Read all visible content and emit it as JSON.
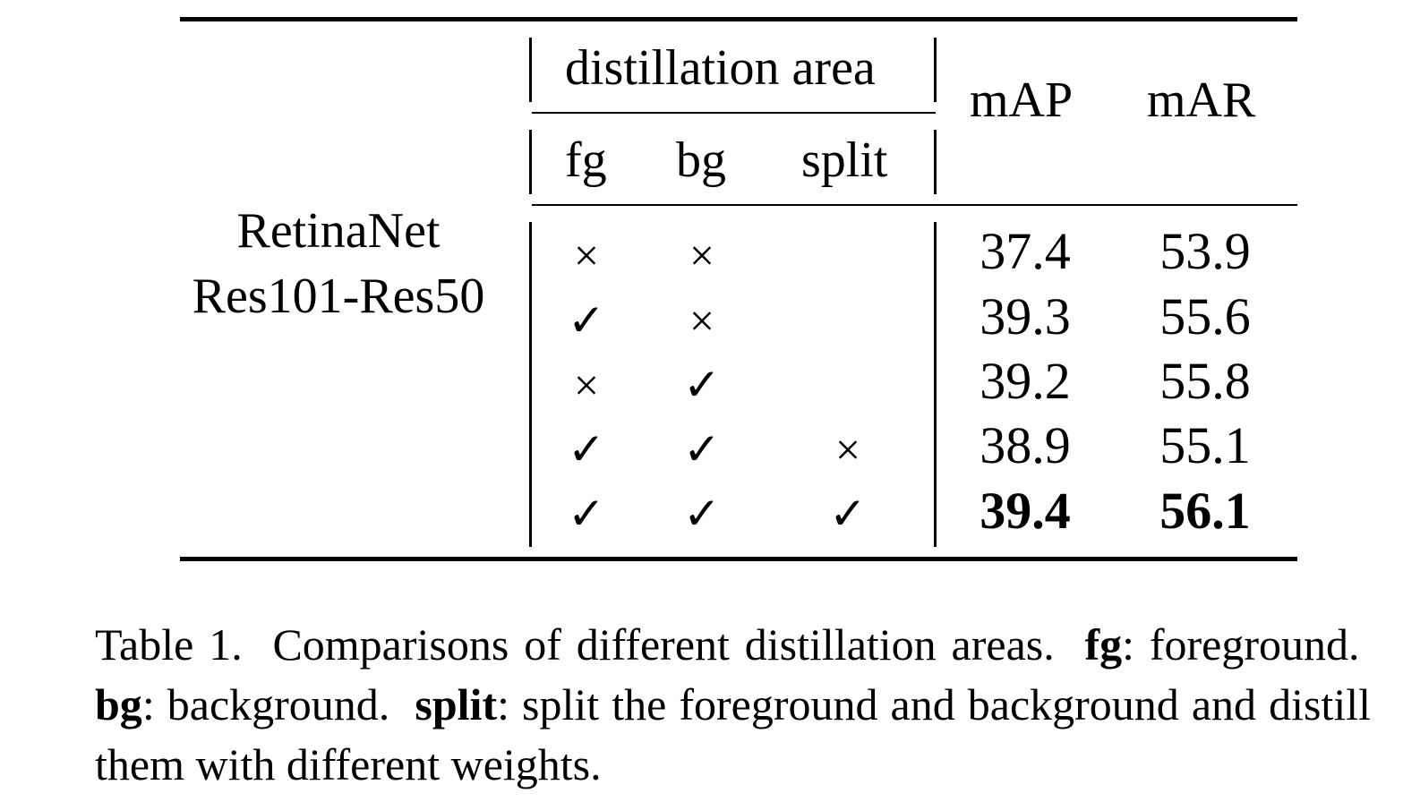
{
  "table": {
    "model_line1": "RetinaNet",
    "model_line2": "Res101-Res50",
    "group_header": "distillation area",
    "col_fg": "fg",
    "col_bg": "bg",
    "col_split": "split",
    "col_map": "mAP",
    "col_mar": "mAR",
    "rows": [
      {
        "fg": "×",
        "bg": "×",
        "split": "",
        "map": "37.4",
        "mar": "53.9"
      },
      {
        "fg": "✓",
        "bg": "×",
        "split": "",
        "map": "39.3",
        "mar": "55.6"
      },
      {
        "fg": "×",
        "bg": "✓",
        "split": "",
        "map": "39.2",
        "mar": "55.8"
      },
      {
        "fg": "✓",
        "bg": "✓",
        "split": "×",
        "map": "38.9",
        "mar": "55.1"
      },
      {
        "fg": "✓",
        "bg": "✓",
        "split": "✓",
        "map": "39.4",
        "mar": "56.1"
      }
    ]
  },
  "caption": {
    "label": "Table 1.",
    "intro": "Comparisons of different distillation areas.",
    "fg_term": "fg",
    "fg_desc": ": foreground.",
    "bg_term": "bg",
    "bg_desc": ": background.",
    "split_term": "split",
    "split_desc": ": split the foreground and background and distill them with different weights."
  }
}
